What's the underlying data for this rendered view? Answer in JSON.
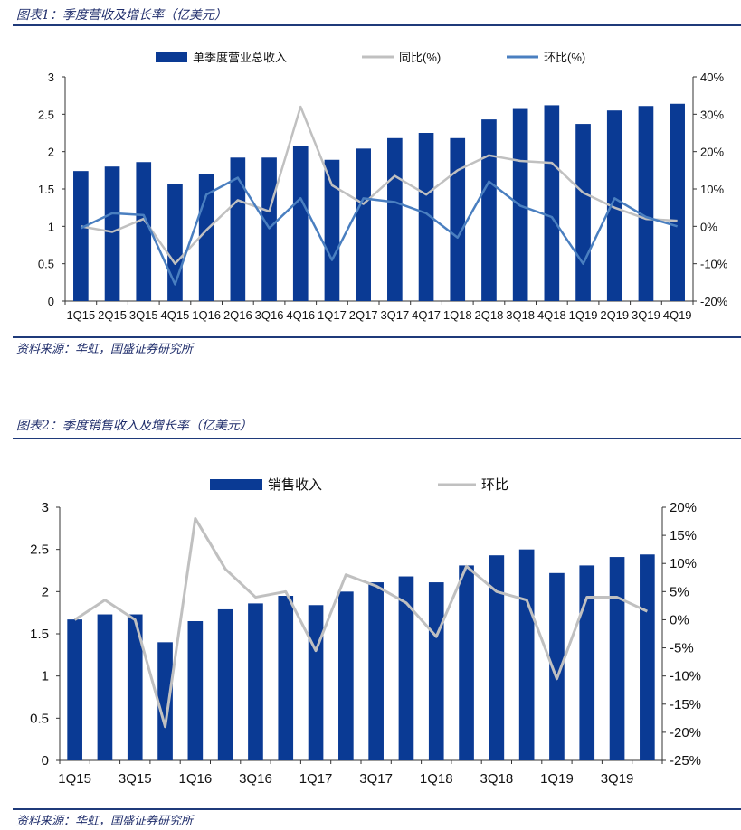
{
  "figures": [
    {
      "title": "图表1：季度营收及增长率（亿美元）",
      "source": "资料来源：华虹，国盛证券研究所"
    },
    {
      "title": "图表2：季度销售收入及增长率（亿美元）",
      "source": "资料来源：华虹，国盛证券研究所"
    }
  ],
  "colors": {
    "bar": "#0a3a94",
    "line_gray": "#c0c0c0",
    "line_blue": "#4a7fc0",
    "rule": "#1f3a7a"
  },
  "chart_data": [
    {
      "type": "bar",
      "categories": [
        "1Q15",
        "2Q15",
        "3Q15",
        "4Q15",
        "1Q16",
        "2Q16",
        "3Q16",
        "4Q16",
        "1Q17",
        "2Q17",
        "3Q17",
        "4Q17",
        "1Q18",
        "2Q18",
        "3Q18",
        "4Q18",
        "1Q19",
        "2Q19",
        "3Q19",
        "4Q19"
      ],
      "tick_labels": [
        "1Q15",
        "2Q15",
        "3Q15",
        "4Q15",
        "1Q16",
        "2Q16",
        "3Q16",
        "4Q16",
        "1Q17",
        "2Q17",
        "3Q17",
        "4Q17",
        "1Q18",
        "2Q18",
        "3Q18",
        "4Q18",
        "1Q19",
        "2Q19",
        "3Q19",
        "4Q19"
      ],
      "series": [
        {
          "name": "单季度营业总收入",
          "type": "bar",
          "axis": "left",
          "values": [
            1.74,
            1.8,
            1.86,
            1.57,
            1.7,
            1.92,
            1.92,
            2.07,
            1.89,
            2.04,
            2.18,
            2.25,
            2.18,
            2.43,
            2.57,
            2.62,
            2.37,
            2.55,
            2.61,
            2.64
          ]
        },
        {
          "name": "同比(%)",
          "type": "line",
          "axis": "right",
          "values": [
            0,
            -1.5,
            2,
            -10,
            -1,
            7,
            4,
            32,
            11,
            6,
            13.5,
            8.5,
            15,
            19,
            17.5,
            17,
            9,
            5,
            2,
            1.5
          ]
        },
        {
          "name": "环比(%)",
          "type": "line",
          "axis": "right",
          "values": [
            -0.5,
            3.5,
            3,
            -15.5,
            8.5,
            13,
            -0.5,
            7.5,
            -9,
            7.5,
            6.5,
            3.5,
            -3,
            12,
            5.5,
            2.5,
            -10,
            7.5,
            2.5,
            0
          ]
        }
      ],
      "y_left": {
        "range": [
          0,
          3
        ],
        "ticks": [
          "0",
          "0.5",
          "1",
          "1.5",
          "2",
          "2.5",
          "3"
        ],
        "tick_values": [
          0,
          0.5,
          1,
          1.5,
          2,
          2.5,
          3
        ]
      },
      "y_right": {
        "range": [
          -20,
          40
        ],
        "ticks": [
          "-20%",
          "-10%",
          "0%",
          "10%",
          "20%",
          "30%",
          "40%"
        ],
        "tick_values": [
          -20,
          -10,
          0,
          10,
          20,
          30,
          40
        ]
      },
      "legend": "top"
    },
    {
      "type": "bar",
      "categories": [
        "1Q15",
        "2Q15",
        "3Q15",
        "4Q15",
        "1Q16",
        "2Q16",
        "3Q16",
        "4Q16",
        "1Q17",
        "2Q17",
        "3Q17",
        "4Q17",
        "1Q18",
        "2Q18",
        "3Q18",
        "4Q18",
        "1Q19",
        "2Q19",
        "3Q19",
        "4Q19"
      ],
      "tick_labels": [
        "1Q15",
        "",
        "3Q15",
        "",
        "1Q16",
        "",
        "3Q16",
        "",
        "1Q17",
        "",
        "3Q17",
        "",
        "1Q18",
        "",
        "3Q18",
        "",
        "1Q19",
        "",
        "3Q19",
        ""
      ],
      "series": [
        {
          "name": "销售收入",
          "type": "bar",
          "axis": "left",
          "values": [
            1.67,
            1.73,
            1.73,
            1.4,
            1.65,
            1.79,
            1.86,
            1.95,
            1.84,
            2.0,
            2.11,
            2.18,
            2.11,
            2.31,
            2.43,
            2.5,
            2.22,
            2.31,
            2.41,
            2.44
          ]
        },
        {
          "name": "环比",
          "type": "line",
          "axis": "right",
          "values": [
            0,
            3.5,
            0,
            -19,
            18,
            9,
            4,
            5,
            -5.5,
            8,
            6,
            3,
            -3,
            9.5,
            5,
            3.5,
            -10.5,
            4,
            4,
            1.5
          ]
        }
      ],
      "y_left": {
        "range": [
          0,
          3
        ],
        "ticks": [
          "0",
          "0.5",
          "1",
          "1.5",
          "2",
          "2.5",
          "3"
        ],
        "tick_values": [
          0,
          0.5,
          1,
          1.5,
          2,
          2.5,
          3
        ]
      },
      "y_right": {
        "range": [
          -25,
          20
        ],
        "ticks": [
          "-25%",
          "-20%",
          "-15%",
          "-10%",
          "-5%",
          "0%",
          "5%",
          "10%",
          "15%",
          "20%"
        ],
        "tick_values": [
          -25,
          -20,
          -15,
          -10,
          -5,
          0,
          5,
          10,
          15,
          20
        ]
      },
      "legend": "top"
    }
  ]
}
